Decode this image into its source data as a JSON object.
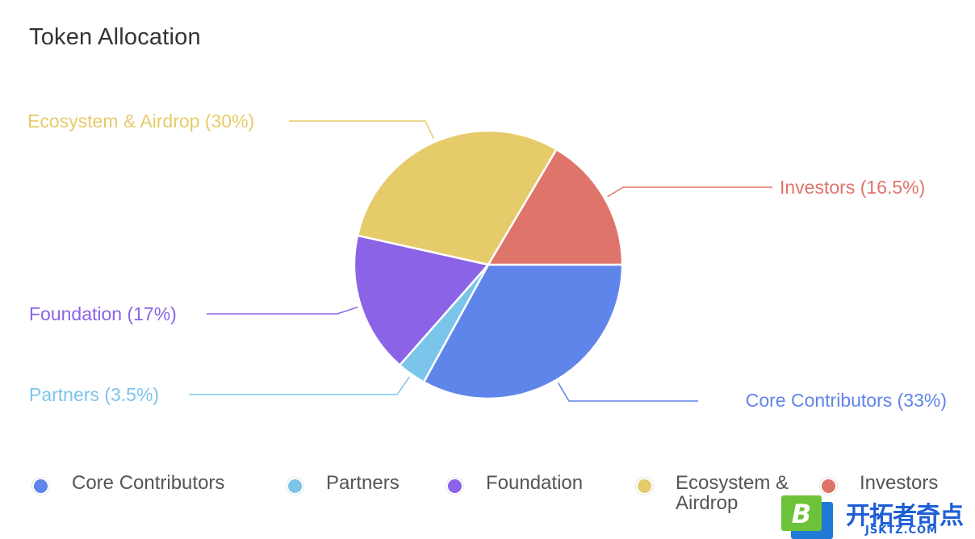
{
  "chart_data": {
    "type": "pie",
    "title": "Token Allocation",
    "slices": [
      {
        "name": "Core Contributors",
        "value": 33,
        "label": "Core Contributors (33%)",
        "color": "#6085EA"
      },
      {
        "name": "Partners",
        "value": 3.5,
        "label": "Partners (3.5%)",
        "color": "#7CC5EA"
      },
      {
        "name": "Foundation",
        "value": 17,
        "label": "Foundation (17%)",
        "color": "#8B63E6"
      },
      {
        "name": "Ecosystem & Airdrop",
        "value": 30,
        "label": "Ecosystem & Airdrop (30%)",
        "color": "#E6CB6B"
      },
      {
        "name": "Investors",
        "value": 16.5,
        "label": "Investors (16.5%)",
        "color": "#DF746B"
      }
    ],
    "legend_placement": "bottom"
  },
  "legend": [
    {
      "label": "Core Contributors",
      "color": "#6085EA"
    },
    {
      "label": "Partners",
      "color": "#7CC5EA"
    },
    {
      "label": "Foundation",
      "color": "#8B63E6"
    },
    {
      "label": "Ecosystem &\nAirdrop",
      "color": "#E6CB6B"
    },
    {
      "label": "Investors",
      "color": "#DF746B"
    }
  ],
  "watermark": {
    "text": "开拓者奇点",
    "sub": "JSKTZ.COM",
    "logo_letter": "B"
  }
}
